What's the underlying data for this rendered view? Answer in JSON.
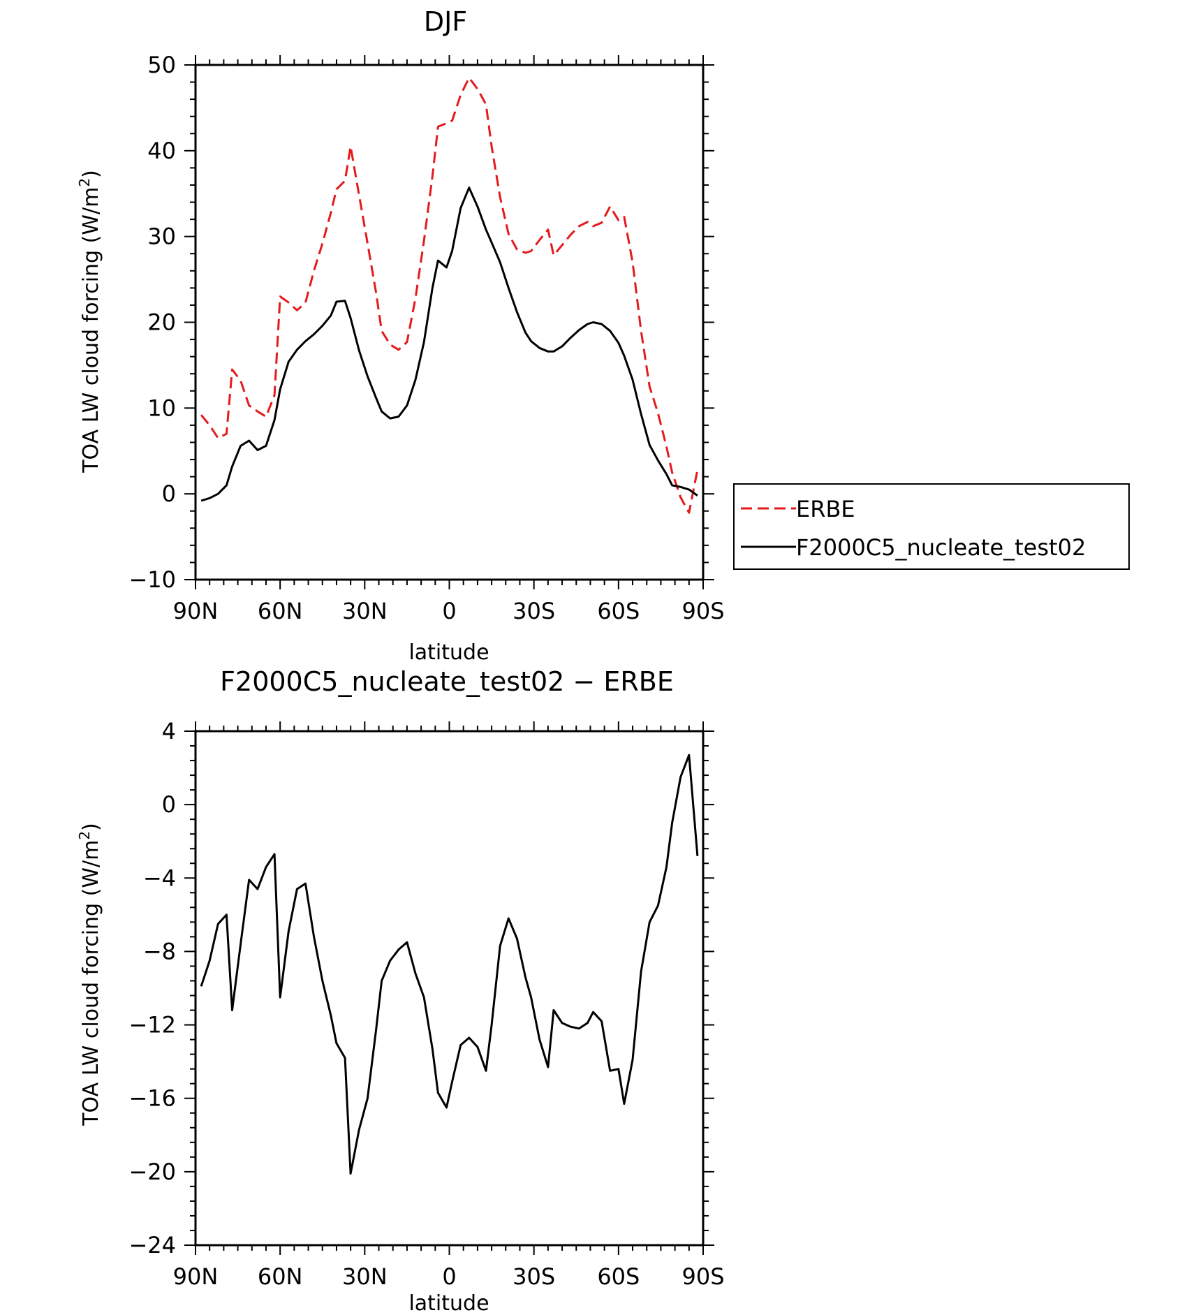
{
  "chart_data": [
    {
      "type": "line",
      "title": "DJF",
      "xlabel": "latitude",
      "ylabel": "TOA LW cloud forcing (W/m",
      "ylabel_sup": "2",
      "ylabel_end": ")",
      "xlim": [
        90,
        -90
      ],
      "ylim": [
        -10,
        50
      ],
      "x_ticks": [
        {
          "value": 90,
          "label": "90N"
        },
        {
          "value": 60,
          "label": "60N"
        },
        {
          "value": 30,
          "label": "30N"
        },
        {
          "value": 0,
          "label": "0"
        },
        {
          "value": -30,
          "label": "30S"
        },
        {
          "value": -60,
          "label": "60S"
        },
        {
          "value": -90,
          "label": "90S"
        }
      ],
      "y_ticks": [
        {
          "value": 50,
          "label": "50"
        },
        {
          "value": 40,
          "label": "40"
        },
        {
          "value": 30,
          "label": "30"
        },
        {
          "value": 20,
          "label": "20"
        },
        {
          "value": 10,
          "label": "10"
        },
        {
          "value": 0,
          "label": "0"
        },
        {
          "value": -10,
          "label": "−10"
        }
      ],
      "legend": [
        {
          "label": "ERBE",
          "color": "#e41a1c",
          "dash": "dashed"
        },
        {
          "label": "F2000C5_nucleate_test02",
          "color": "#000000",
          "dash": "solid"
        }
      ],
      "series": [
        {
          "name": "ERBE",
          "color": "#e41a1c",
          "dash": "dashed",
          "x": [
            88,
            85,
            82,
            79,
            77,
            74,
            71,
            68,
            65,
            62,
            60,
            57,
            54,
            51,
            48,
            45,
            42,
            40,
            37,
            35,
            32,
            29,
            26,
            24,
            21,
            18,
            15,
            12,
            9,
            6,
            4,
            1,
            -1,
            -4,
            -7,
            -10,
            -13,
            -15,
            -18,
            -21,
            -24,
            -27,
            -29,
            -32,
            -35,
            -37,
            -40,
            -43,
            -46,
            -49,
            -51,
            -54,
            -57,
            -60,
            -62,
            -65,
            -68,
            -71,
            -74,
            -77,
            -79,
            -82,
            -85,
            -88
          ],
          "y": [
            9.2,
            8.0,
            6.5,
            7.0,
            14.5,
            13.2,
            10.3,
            9.6,
            9.0,
            11.5,
            23.0,
            22.3,
            21.4,
            22.3,
            26.0,
            29.2,
            32.8,
            35.5,
            36.5,
            40.5,
            34.8,
            29.2,
            23.5,
            19.0,
            17.4,
            16.8,
            17.7,
            22.8,
            29.5,
            37.0,
            42.8,
            43.2,
            43.5,
            46.5,
            48.5,
            47.2,
            45.4,
            40.5,
            34.6,
            30.3,
            28.5,
            28.1,
            28.3,
            29.6,
            30.8,
            27.8,
            29.0,
            30.2,
            31.2,
            31.7,
            31.2,
            31.6,
            33.5,
            31.9,
            32.3,
            27.0,
            19.0,
            12.5,
            9.4,
            5.5,
            2.5,
            -0.4,
            -2.2,
            2.8
          ]
        },
        {
          "name": "F2000C5_nucleate_test02",
          "color": "#000000",
          "dash": "solid",
          "x": [
            88,
            85,
            82,
            79,
            77,
            74,
            71,
            68,
            65,
            62,
            60,
            57,
            54,
            51,
            48,
            45,
            42,
            40,
            37,
            35,
            32,
            29,
            26,
            24,
            21,
            18,
            15,
            12,
            9,
            6,
            4,
            1,
            -1,
            -4,
            -7,
            -10,
            -13,
            -15,
            -18,
            -21,
            -24,
            -27,
            -29,
            -32,
            -35,
            -37,
            -40,
            -43,
            -46,
            -49,
            -51,
            -54,
            -57,
            -60,
            -62,
            -65,
            -68,
            -71,
            -74,
            -77,
            -79,
            -82,
            -85,
            -88
          ],
          "y": [
            -0.8,
            -0.5,
            0.0,
            1.0,
            3.2,
            5.6,
            6.2,
            5.1,
            5.6,
            8.6,
            12.2,
            15.4,
            16.8,
            17.8,
            18.6,
            19.6,
            20.8,
            22.4,
            22.5,
            20.5,
            16.7,
            13.7,
            11.2,
            9.6,
            8.8,
            9.0,
            10.3,
            13.3,
            17.7,
            24.0,
            27.2,
            26.4,
            28.3,
            33.3,
            35.7,
            33.5,
            30.8,
            29.3,
            27.0,
            24.0,
            21.2,
            18.8,
            17.8,
            17.0,
            16.6,
            16.6,
            17.2,
            18.2,
            19.1,
            19.8,
            20.0,
            19.8,
            19.0,
            17.6,
            16.1,
            13.3,
            9.3,
            5.7,
            3.9,
            2.3,
            1.0,
            0.8,
            0.5,
            -0.2
          ]
        }
      ]
    },
    {
      "type": "line",
      "title": "F2000C5_nucleate_test02 − ERBE",
      "xlabel": "latitude",
      "ylabel": "TOA LW cloud forcing (W/m",
      "ylabel_sup": "2",
      "ylabel_end": ")",
      "xlim": [
        90,
        -90
      ],
      "ylim": [
        -24,
        4
      ],
      "x_ticks": [
        {
          "value": 90,
          "label": "90N"
        },
        {
          "value": 60,
          "label": "60N"
        },
        {
          "value": 30,
          "label": "30N"
        },
        {
          "value": 0,
          "label": "0"
        },
        {
          "value": -30,
          "label": "30S"
        },
        {
          "value": -60,
          "label": "60S"
        },
        {
          "value": -90,
          "label": "90S"
        }
      ],
      "y_ticks": [
        {
          "value": 4,
          "label": "4"
        },
        {
          "value": 0,
          "label": "0"
        },
        {
          "value": -4,
          "label": "−4"
        },
        {
          "value": -8,
          "label": "−8"
        },
        {
          "value": -12,
          "label": "−12"
        },
        {
          "value": -16,
          "label": "−16"
        },
        {
          "value": -20,
          "label": "−20"
        },
        {
          "value": -24,
          "label": "−24"
        }
      ],
      "series": [
        {
          "name": "F2000C5_nucleate_test02 − ERBE",
          "color": "#000000",
          "dash": "solid",
          "x": [
            88,
            85,
            82,
            79,
            77,
            74,
            71,
            68,
            65,
            62,
            60,
            57,
            54,
            51,
            48,
            45,
            42,
            40,
            37,
            35,
            32,
            29,
            26,
            24,
            21,
            18,
            15,
            12,
            9,
            6,
            4,
            1,
            -1,
            -4,
            -7,
            -10,
            -13,
            -15,
            -18,
            -21,
            -24,
            -27,
            -29,
            -32,
            -35,
            -37,
            -40,
            -43,
            -46,
            -49,
            -51,
            -54,
            -57,
            -60,
            -62,
            -65,
            -68,
            -71,
            -74,
            -77,
            -79,
            -82,
            -85,
            -88
          ],
          "y": [
            -9.9,
            -8.5,
            -6.5,
            -6.0,
            -11.2,
            -7.6,
            -4.1,
            -4.6,
            -3.4,
            -2.7,
            -10.5,
            -6.9,
            -4.6,
            -4.3,
            -7.2,
            -9.6,
            -11.5,
            -13.0,
            -13.8,
            -20.1,
            -17.7,
            -16.0,
            -12.3,
            -9.6,
            -8.5,
            -7.9,
            -7.5,
            -9.2,
            -10.5,
            -13.3,
            -15.7,
            -16.5,
            -15.1,
            -13.1,
            -12.7,
            -13.2,
            -14.5,
            -12.0,
            -7.7,
            -6.2,
            -7.3,
            -9.4,
            -10.5,
            -12.8,
            -14.3,
            -11.2,
            -11.9,
            -12.1,
            -12.2,
            -11.9,
            -11.3,
            -11.8,
            -14.5,
            -14.4,
            -16.3,
            -13.9,
            -9.1,
            -6.4,
            -5.5,
            -3.4,
            -1.0,
            1.5,
            2.7,
            -2.8
          ]
        }
      ]
    }
  ]
}
